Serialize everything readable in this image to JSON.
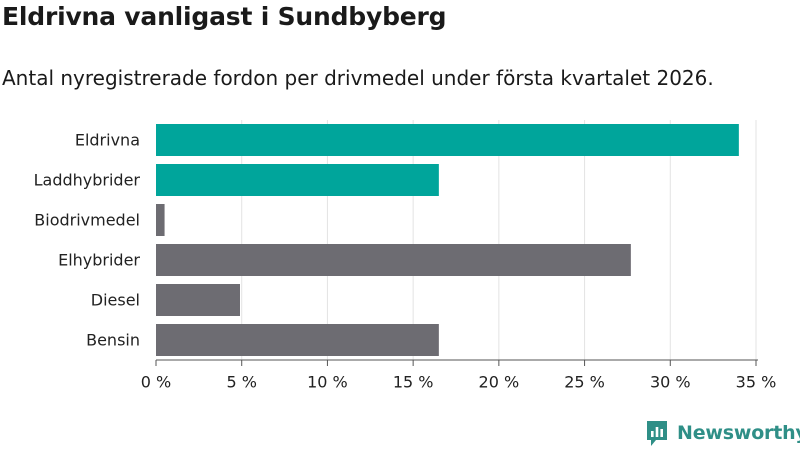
{
  "header": {
    "title": "Eldrivna vanligast i Sundbyberg",
    "subtitle": "Antal nyregistrerade fordon per drivmedel under första kvartalet 2026."
  },
  "chart_data": {
    "type": "bar",
    "orientation": "horizontal",
    "categories": [
      "Eldrivna",
      "Laddhybrider",
      "Biodrivmedel",
      "Elhybrider",
      "Diesel",
      "Bensin"
    ],
    "values": [
      34.0,
      16.5,
      0.5,
      27.7,
      4.9,
      16.5
    ],
    "bar_colors": [
      "#00a59b",
      "#00a59b",
      "#6d6c72",
      "#6d6c72",
      "#6d6c72",
      "#6d6c72"
    ],
    "xlim": [
      0,
      35
    ],
    "xticks": [
      0,
      5,
      10,
      15,
      20,
      25,
      30,
      35
    ],
    "xtick_labels": [
      "0 %",
      "5 %",
      "10 %",
      "15 %",
      "20 %",
      "25 %",
      "30 %",
      "35 %"
    ],
    "grid": true
  },
  "brand": {
    "name": "Newsworthy",
    "icon": "newsworthy-logo-icon",
    "color": "#2f8f87"
  }
}
